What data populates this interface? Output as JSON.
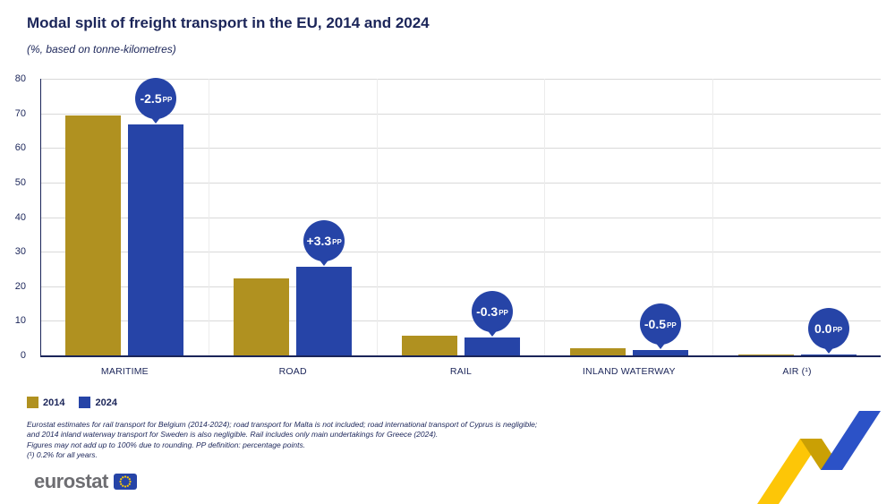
{
  "title": "Modal split of freight transport in the EU, 2014 and 2024",
  "subtitle": "(%, based on tonne-kilometres)",
  "chart_data": {
    "type": "bar",
    "categories": [
      "MARITIME",
      "ROAD",
      "RAIL",
      "INLAND WATERWAY",
      "AIR (¹)"
    ],
    "series": [
      {
        "name": "2014",
        "color": "#b09120",
        "values": [
          69.4,
          22.3,
          5.6,
          2.0,
          0.2
        ]
      },
      {
        "name": "2024",
        "color": "#2644a7",
        "values": [
          66.9,
          25.6,
          5.3,
          1.5,
          0.2
        ]
      }
    ],
    "changes": [
      "-2.5",
      "+3.3",
      "-0.3",
      "-0.5",
      "0.0"
    ],
    "change_unit": "PP",
    "ylim": [
      0,
      80
    ],
    "yticks": [
      0,
      10,
      20,
      30,
      40,
      50,
      60,
      70,
      80
    ],
    "grid": "horizontal",
    "legend_position": "bottom-left",
    "balloon_color": "#2644a7"
  },
  "footnotes": [
    "Eurostat estimates for rail transport for Belgium (2014-2024); road transport for Malta is not included; road international transport of Cyprus is negligible;",
    "and 2014 inland waterway transport for Sweden is also negligible. Rail includes only main undertakings for Greece (2024).",
    "Figures may not add up to 100% due to rounding. PP definition: percentage points.",
    "(¹) 0.2% for all years."
  ],
  "logo": {
    "text": "eurostat"
  },
  "colors": {
    "accent_gold": "#b09120",
    "accent_blue": "#2644a7",
    "text_navy": "#1b2559",
    "gridline": "#d9d9d9",
    "deco_yellow": "#fdc607",
    "deco_dark_gold": "#caa004",
    "deco_blue": "#2c52c7"
  }
}
